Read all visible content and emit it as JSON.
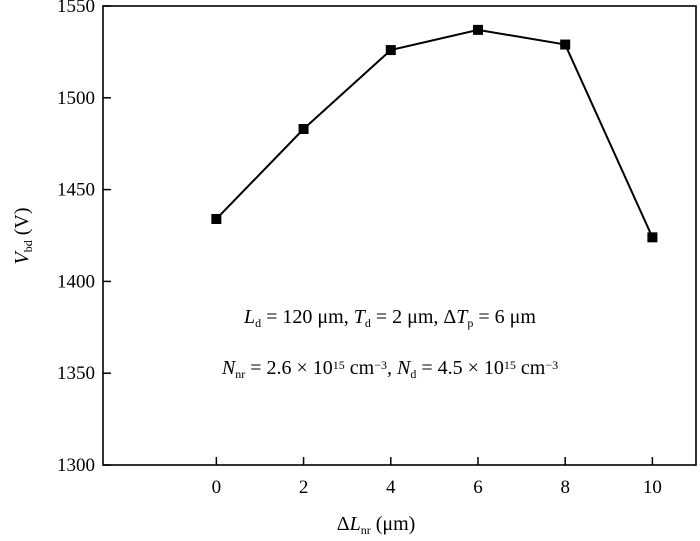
{
  "chart_data": {
    "type": "line",
    "title": "",
    "xlabel": {
      "symbol": "ΔL",
      "sub": "nr",
      "unit": "(μm)"
    },
    "ylabel": {
      "symbol": "V",
      "sub": "bd",
      "unit": "(V)"
    },
    "xlim": [
      -2.6,
      11
    ],
    "ylim": [
      1300,
      1550
    ],
    "xticks": [
      0,
      2,
      4,
      6,
      8,
      10
    ],
    "yticks": [
      1300,
      1350,
      1400,
      1450,
      1500,
      1550
    ],
    "grid": false,
    "series": [
      {
        "x": [
          0,
          2,
          4,
          6,
          8,
          10
        ],
        "values": [
          1434,
          1483,
          1526,
          1537,
          1529,
          1424
        ],
        "marker": "square",
        "color": "#000000"
      }
    ],
    "annotations": [
      {
        "parts": [
          {
            "t": "L",
            "style": "italic"
          },
          {
            "t": "d",
            "style": "sub"
          },
          {
            "t": " = 120 μm, "
          },
          {
            "t": "T",
            "style": "italic"
          },
          {
            "t": "d",
            "style": "sub"
          },
          {
            "t": " = 2 μm, Δ"
          },
          {
            "t": "T",
            "style": "italic"
          },
          {
            "t": "p",
            "style": "sub"
          },
          {
            "t": " = 6 μm"
          }
        ]
      },
      {
        "parts": [
          {
            "t": "N",
            "style": "italic"
          },
          {
            "t": "nr",
            "style": "sub"
          },
          {
            "t": " = 2.6 × 10"
          },
          {
            "t": "15",
            "style": "sup"
          },
          {
            "t": " cm"
          },
          {
            "t": "−3",
            "style": "sup"
          },
          {
            "t": ", "
          },
          {
            "t": "N",
            "style": "italic"
          },
          {
            "t": "d",
            "style": "sub"
          },
          {
            "t": " = 4.5 × 10"
          },
          {
            "t": "15",
            "style": "sup"
          },
          {
            "t": " cm"
          },
          {
            "t": "−3",
            "style": "sup"
          }
        ]
      }
    ]
  }
}
